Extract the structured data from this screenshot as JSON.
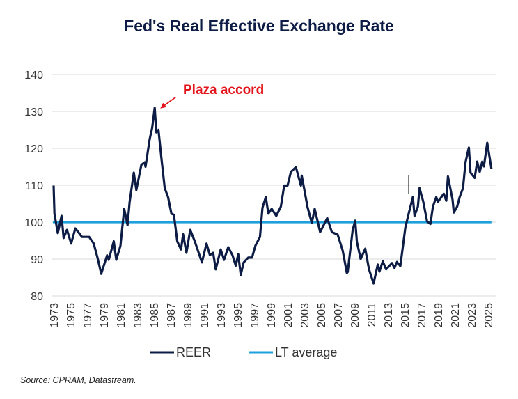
{
  "title": "Fed's Real Effective Exchange Rate",
  "source": "Source: CPRAM, Datastream.",
  "colors": {
    "reer": "#0d1c45",
    "lt_average": "#1ea0dc",
    "annotation": "#e3141b",
    "grid": "#d9d9d9"
  },
  "chart_data": {
    "type": "line",
    "title": "Fed's Real Effective Exchange Rate",
    "xlabel": "",
    "ylabel": "",
    "ylim": [
      80,
      140
    ],
    "xlim": [
      1973,
      2025.4
    ],
    "yticks": [
      80,
      90,
      100,
      110,
      120,
      130,
      140
    ],
    "xticks": [
      1973,
      1975,
      1977,
      1979,
      1981,
      1983,
      1985,
      1987,
      1989,
      1991,
      1993,
      1995,
      1997,
      1999,
      2001,
      2003,
      2005,
      2007,
      2009,
      2011,
      2013,
      2015,
      2017,
      2019,
      2021,
      2023,
      2025
    ],
    "grid": true,
    "legend_placement": "bottom",
    "annotation": {
      "text": "Plaza accord",
      "x": 1985.1,
      "y": 131
    },
    "series": [
      {
        "name": "REER",
        "points": [
          [
            1973,
            109.9
          ],
          [
            1973.1,
            102.3
          ],
          [
            1973.5,
            97
          ],
          [
            1973.95,
            101.7
          ],
          [
            1974.2,
            95.7
          ],
          [
            1974.6,
            97.9
          ],
          [
            1975.1,
            94.2
          ],
          [
            1975.6,
            98.3
          ],
          [
            1976.4,
            96
          ],
          [
            1977.25,
            96
          ],
          [
            1977.8,
            94.2
          ],
          [
            1978.25,
            90.4
          ],
          [
            1978.7,
            86
          ],
          [
            1979.4,
            91
          ],
          [
            1979.6,
            89.8
          ],
          [
            1980.2,
            94.8
          ],
          [
            1980.5,
            89.8
          ],
          [
            1981,
            93.6
          ],
          [
            1981.45,
            103.6
          ],
          [
            1981.85,
            99.2
          ],
          [
            1982.1,
            105.5
          ],
          [
            1982.6,
            113.4
          ],
          [
            1982.9,
            108.7
          ],
          [
            1983.5,
            115.5
          ],
          [
            1983.9,
            116.2
          ],
          [
            1984.0,
            115
          ],
          [
            1984.5,
            122.5
          ],
          [
            1984.8,
            125.6
          ],
          [
            1985.1,
            131
          ],
          [
            1985.3,
            124.3
          ],
          [
            1985.55,
            125
          ],
          [
            1985.9,
            117.4
          ],
          [
            1986.3,
            109.2
          ],
          [
            1986.7,
            106.8
          ],
          [
            1987.1,
            102.3
          ],
          [
            1987.4,
            102
          ],
          [
            1987.8,
            94.8
          ],
          [
            1988.25,
            92.6
          ],
          [
            1988.5,
            96.7
          ],
          [
            1988.9,
            91.7
          ],
          [
            1989.35,
            97.9
          ],
          [
            1989.9,
            94.8
          ],
          [
            1990.75,
            89.1
          ],
          [
            1991.3,
            94.2
          ],
          [
            1991.7,
            91.1
          ],
          [
            1992.1,
            91.7
          ],
          [
            1992.4,
            87.2
          ],
          [
            1993,
            92.6
          ],
          [
            1993.4,
            89.8
          ],
          [
            1993.9,
            93.2
          ],
          [
            1994.4,
            91.1
          ],
          [
            1994.8,
            88.2
          ],
          [
            1995.1,
            91.3
          ],
          [
            1995.4,
            85.7
          ],
          [
            1995.75,
            89.1
          ],
          [
            1996.3,
            90.4
          ],
          [
            1996.75,
            90.4
          ],
          [
            1997.15,
            93.6
          ],
          [
            1997.7,
            96
          ],
          [
            1998,
            103.9
          ],
          [
            1998.4,
            106.8
          ],
          [
            1998.7,
            102.3
          ],
          [
            1999.1,
            103.6
          ],
          [
            1999.65,
            101.7
          ],
          [
            2000.2,
            104.2
          ],
          [
            2000.6,
            109.9
          ],
          [
            2001.0,
            109.9
          ],
          [
            2001.4,
            113.6
          ],
          [
            2002.0,
            114.9
          ],
          [
            2002.6,
            109.9
          ],
          [
            2002.7,
            112.6
          ],
          [
            2003.4,
            104
          ],
          [
            2003.9,
            99.8
          ],
          [
            2004.25,
            103.6
          ],
          [
            2004.9,
            97.3
          ],
          [
            2005.75,
            101.1
          ],
          [
            2006.3,
            97.3
          ],
          [
            2007,
            96.6
          ],
          [
            2007.6,
            92.3
          ],
          [
            2008.1,
            86.2
          ],
          [
            2008.2,
            86.5
          ],
          [
            2008.8,
            97.9
          ],
          [
            2009.1,
            100.4
          ],
          [
            2009.3,
            94.7
          ],
          [
            2009.75,
            90
          ],
          [
            2010.3,
            92.8
          ],
          [
            2010.75,
            87.2
          ],
          [
            2011.3,
            83.4
          ],
          [
            2011.8,
            88.5
          ],
          [
            2012,
            86.6
          ],
          [
            2012.4,
            89.4
          ],
          [
            2012.8,
            87.2
          ],
          [
            2013.5,
            88.9
          ],
          [
            2013.8,
            87.6
          ],
          [
            2014.1,
            89.2
          ],
          [
            2014.5,
            88.1
          ],
          [
            2015.1,
            98.5
          ],
          [
            2015.5,
            102.3
          ],
          [
            2016,
            106.8
          ],
          [
            2016.2,
            101.7
          ],
          [
            2016.6,
            104.2
          ],
          [
            2016.8,
            109.2
          ],
          [
            2017.25,
            105.5
          ],
          [
            2017.7,
            100.2
          ],
          [
            2018.1,
            99.5
          ],
          [
            2018.4,
            104.2
          ],
          [
            2018.8,
            106.8
          ],
          [
            2019.0,
            105.5
          ],
          [
            2019.7,
            107.7
          ],
          [
            2020.0,
            105.8
          ],
          [
            2020.2,
            112.4
          ],
          [
            2020.75,
            106.1
          ],
          [
            2020.9,
            102.6
          ],
          [
            2021.3,
            104.2
          ],
          [
            2021.6,
            106.8
          ],
          [
            2022,
            109.2
          ],
          [
            2022.3,
            116.2
          ],
          [
            2022.7,
            120.2
          ],
          [
            2022.9,
            113.4
          ],
          [
            2023.4,
            112
          ],
          [
            2023.7,
            116.4
          ],
          [
            2024.0,
            113.6
          ],
          [
            2024.3,
            116.4
          ],
          [
            2024.5,
            115.1
          ],
          [
            2024.9,
            121.5
          ],
          [
            2025.4,
            114.5
          ]
        ]
      },
      {
        "name": "LT average",
        "points": [
          [
            1973,
            100
          ],
          [
            2025.4,
            100
          ]
        ]
      }
    ]
  }
}
